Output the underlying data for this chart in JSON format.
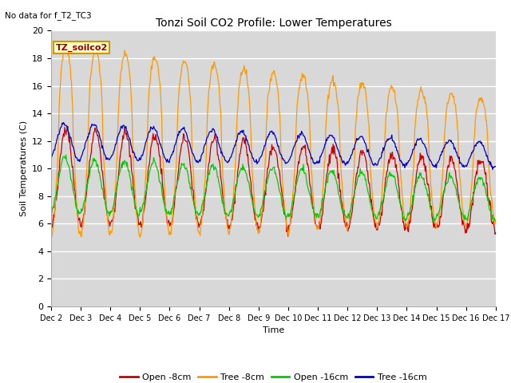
{
  "title": "Tonzi Soil CO2 Profile: Lower Temperatures",
  "subtitle": "No data for f_T2_TC3",
  "xlabel": "Time",
  "ylabel": "Soil Temperatures (C)",
  "ylim": [
    0,
    20
  ],
  "yticks": [
    0,
    2,
    4,
    6,
    8,
    10,
    12,
    14,
    16,
    18,
    20
  ],
  "xtick_labels": [
    "Dec 2",
    "Dec 3",
    "Dec 4",
    "Dec 5",
    "Dec 6",
    "Dec 7",
    "Dec 8",
    "Dec 9",
    "Dec 10",
    "Dec 11",
    "Dec 12",
    "Dec 13",
    "Dec 14",
    "Dec 15",
    "Dec 16",
    "Dec 17"
  ],
  "colors": {
    "open_8cm": "#cc0000",
    "tree_8cm": "#ff9900",
    "open_16cm": "#00cc00",
    "tree_16cm": "#0000cc"
  },
  "legend_labels": [
    "Open -8cm",
    "Tree -8cm",
    "Open -16cm",
    "Tree -16cm"
  ],
  "bg_color": "#d8d8d8",
  "grid_color": "#ffffff",
  "annotation_text": "TZ_soilco2",
  "annotation_bg": "#ffffcc",
  "annotation_border": "#cc9900"
}
